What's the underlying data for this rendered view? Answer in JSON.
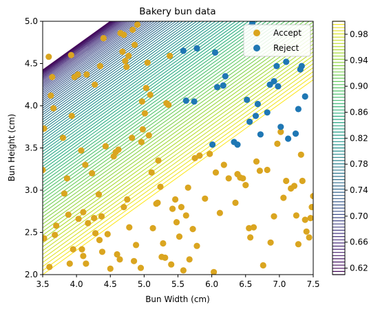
{
  "chart_data": {
    "type": "scatter",
    "title": "Bakery bun data",
    "xlabel": "Bun Width (cm)",
    "ylabel": "Bun Height (cm)",
    "xlim": [
      3.5,
      7.5
    ],
    "ylim": [
      2.0,
      5.0
    ],
    "xticks": [
      "3.5",
      "4.0",
      "4.5",
      "5.0",
      "5.5",
      "6.0",
      "6.5",
      "7.0",
      "7.5"
    ],
    "yticks": [
      "2.0",
      "2.5",
      "3.0",
      "3.5",
      "4.0",
      "4.5",
      "5.0"
    ],
    "legend_position": "top-right",
    "background": "contour lines of predicted probability, decreasing toward upper-left",
    "colorbar": {
      "ticks": [
        "0.62",
        "0.66",
        "0.70",
        "0.74",
        "0.78",
        "0.82",
        "0.86",
        "0.90",
        "0.94",
        "0.98"
      ],
      "range": [
        0.61,
        1.0
      ],
      "colormap": "viridis"
    },
    "series": [
      {
        "name": "Accept",
        "color": "#daa520",
        "points": [
          [
            3.52,
            3.73
          ],
          [
            3.59,
            4.58
          ],
          [
            3.62,
            4.12
          ],
          [
            3.64,
            4.34
          ],
          [
            3.66,
            3.97
          ],
          [
            3.68,
            2.47
          ],
          [
            3.7,
            2.58
          ],
          [
            3.6,
            2.09
          ],
          [
            3.5,
            3.24
          ],
          [
            3.52,
            2.43
          ],
          [
            3.82,
            2.96
          ],
          [
            3.8,
            3.62
          ],
          [
            3.86,
            3.14
          ],
          [
            3.88,
            2.71
          ],
          [
            3.9,
            2.13
          ],
          [
            3.93,
            3.88
          ],
          [
            3.92,
            4.6
          ],
          [
            3.95,
            2.3
          ],
          [
            3.97,
            4.34
          ],
          [
            4.02,
            4.37
          ],
          [
            4.03,
            2.66
          ],
          [
            4.07,
            3.47
          ],
          [
            4.08,
            2.3
          ],
          [
            4.1,
            2.22
          ],
          [
            4.1,
            2.74
          ],
          [
            4.13,
            3.3
          ],
          [
            4.14,
            2.13
          ],
          [
            4.17,
            2.61
          ],
          [
            4.15,
            4.37
          ],
          [
            4.23,
            3.2
          ],
          [
            4.26,
            2.67
          ],
          [
            4.27,
            4.25
          ],
          [
            4.28,
            2.49
          ],
          [
            4.33,
            2.95
          ],
          [
            4.34,
            2.41
          ],
          [
            4.35,
            4.47
          ],
          [
            4.37,
            2.69
          ],
          [
            4.38,
            2.27
          ],
          [
            4.4,
            4.8
          ],
          [
            4.43,
            3.52
          ],
          [
            4.46,
            2.48
          ],
          [
            4.5,
            2.07
          ],
          [
            4.55,
            3.4
          ],
          [
            4.58,
            3.45
          ],
          [
            4.62,
            3.48
          ],
          [
            4.6,
            2.24
          ],
          [
            4.65,
            4.86
          ],
          [
            4.64,
            2.18
          ],
          [
            4.7,
            4.84
          ],
          [
            4.68,
            4.64
          ],
          [
            4.72,
            4.53
          ],
          [
            4.7,
            2.8
          ],
          [
            4.75,
            2.89
          ],
          [
            4.74,
            4.46
          ],
          [
            4.77,
            4.59
          ],
          [
            4.78,
            2.56
          ],
          [
            4.83,
            4.9
          ],
          [
            4.82,
            3.62
          ],
          [
            4.86,
            4.72
          ],
          [
            4.85,
            2.16
          ],
          [
            4.88,
            2.35
          ],
          [
            4.9,
            4.96
          ],
          [
            4.95,
            2.08
          ],
          [
            4.96,
            3.57
          ],
          [
            4.98,
            3.72
          ],
          [
            4.97,
            4.05
          ],
          [
            5.01,
            3.91
          ],
          [
            5.03,
            4.21
          ],
          [
            5.05,
            4.51
          ],
          [
            5.07,
            3.65
          ],
          [
            5.09,
            4.13
          ],
          [
            5.11,
            3.21
          ],
          [
            5.13,
            2.55
          ],
          [
            5.18,
            2.84
          ],
          [
            5.2,
            2.85
          ],
          [
            5.21,
            3.35
          ],
          [
            5.24,
            3.04
          ],
          [
            5.26,
            2.21
          ],
          [
            5.28,
            2.37
          ],
          [
            5.31,
            2.2
          ],
          [
            5.33,
            4.03
          ],
          [
            5.36,
            4.01
          ],
          [
            5.38,
            4.59
          ],
          [
            5.4,
            2.12
          ],
          [
            5.42,
            2.78
          ],
          [
            5.46,
            2.89
          ],
          [
            5.48,
            2.62
          ],
          [
            5.52,
            2.45
          ],
          [
            5.55,
            2.8
          ],
          [
            5.58,
            2.05
          ],
          [
            5.62,
            2.7
          ],
          [
            5.65,
            3.03
          ],
          [
            5.67,
            2.18
          ],
          [
            5.72,
            2.54
          ],
          [
            5.75,
            3.38
          ],
          [
            5.78,
            2.34
          ],
          [
            5.82,
            3.41
          ],
          [
            5.9,
            2.9
          ],
          [
            5.97,
            3.43
          ],
          [
            6.03,
            2.03
          ],
          [
            6.06,
            3.21
          ],
          [
            6.12,
            2.73
          ],
          [
            6.18,
            3.3
          ],
          [
            6.25,
            3.14
          ],
          [
            6.35,
            2.85
          ],
          [
            6.38,
            3.19
          ],
          [
            6.42,
            3.15
          ],
          [
            6.46,
            3.14
          ],
          [
            6.5,
            3.06
          ],
          [
            6.55,
            2.55
          ],
          [
            6.57,
            2.44
          ],
          [
            6.62,
            2.56
          ],
          [
            6.66,
            3.34
          ],
          [
            6.71,
            3.23
          ],
          [
            6.76,
            2.11
          ],
          [
            6.82,
            3.24
          ],
          [
            6.87,
            2.38
          ],
          [
            6.92,
            2.69
          ],
          [
            6.97,
            3.55
          ],
          [
            7.02,
            3.69
          ],
          [
            7.06,
            2.91
          ],
          [
            7.1,
            3.11
          ],
          [
            7.17,
            3.02
          ],
          [
            7.22,
            3.05
          ],
          [
            7.25,
            2.7
          ],
          [
            7.28,
            2.36
          ],
          [
            7.32,
            3.42
          ],
          [
            7.34,
            3.11
          ],
          [
            7.38,
            2.65
          ],
          [
            7.4,
            2.51
          ],
          [
            7.44,
            2.44
          ],
          [
            7.46,
            2.67
          ],
          [
            7.48,
            2.8
          ],
          [
            7.5,
            2.93
          ]
        ]
      },
      {
        "name": "Reject",
        "color": "#1f77b4",
        "points": [
          [
            5.58,
            4.65
          ],
          [
            5.62,
            4.06
          ],
          [
            5.74,
            4.05
          ],
          [
            5.78,
            4.68
          ],
          [
            6.05,
            4.63
          ],
          [
            6.08,
            4.22
          ],
          [
            6.17,
            4.24
          ],
          [
            6.2,
            4.35
          ],
          [
            6.33,
            3.57
          ],
          [
            6.38,
            3.54
          ],
          [
            6.52,
            4.07
          ],
          [
            6.56,
            3.81
          ],
          [
            6.6,
            4.98
          ],
          [
            6.65,
            3.88
          ],
          [
            6.68,
            4.02
          ],
          [
            6.72,
            3.66
          ],
          [
            6.82,
            3.92
          ],
          [
            6.86,
            4.25
          ],
          [
            6.92,
            4.29
          ],
          [
            6.96,
            4.47
          ],
          [
            6.98,
            4.23
          ],
          [
            7.02,
            3.75
          ],
          [
            7.13,
            3.61
          ],
          [
            7.24,
            3.67
          ],
          [
            7.28,
            3.96
          ],
          [
            7.31,
            4.43
          ],
          [
            7.33,
            4.47
          ],
          [
            7.38,
            4.11
          ],
          [
            6.01,
            3.54
          ],
          [
            7.1,
            4.52
          ]
        ]
      }
    ]
  }
}
